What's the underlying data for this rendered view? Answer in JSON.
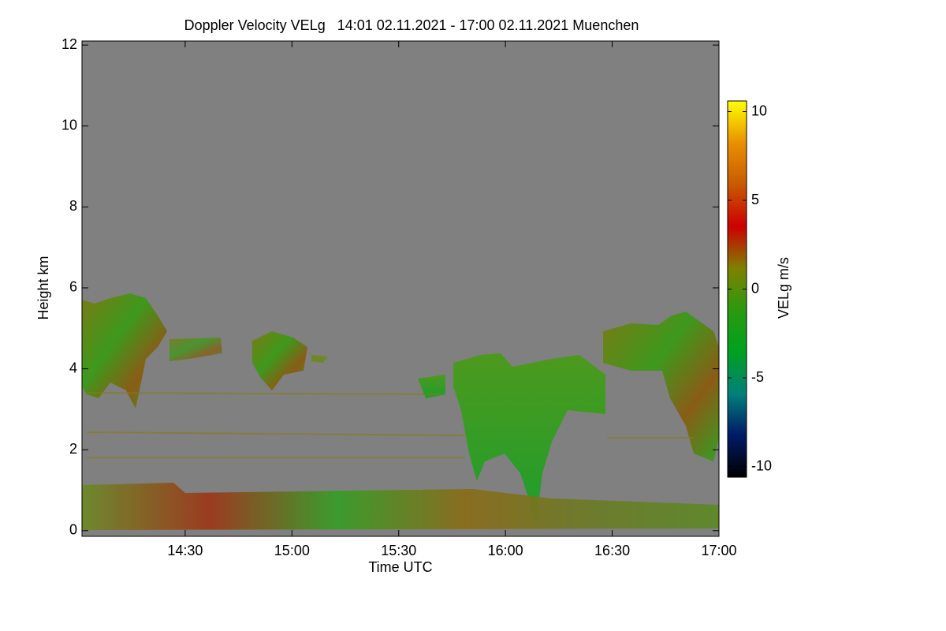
{
  "chart_data": {
    "type": "heatmap",
    "title": "Doppler Velocity VELg   14:01 02.11.2021 - 17:00 02.11.2021 Muenchen",
    "x_label": "Time UTC",
    "y_label": "Height km",
    "colorbar_label": "VELg m/s",
    "xlim": [
      841,
      1020
    ],
    "xticks": [
      {
        "value": 870,
        "label": "14:30"
      },
      {
        "value": 900,
        "label": "15:00"
      },
      {
        "value": 930,
        "label": "15:30"
      },
      {
        "value": 960,
        "label": "16:00"
      },
      {
        "value": 990,
        "label": "16:30"
      },
      {
        "value": 1020,
        "label": "17:00"
      }
    ],
    "ylim": [
      -0.14,
      12.1
    ],
    "yticks": [
      0,
      2,
      4,
      6,
      8,
      10,
      12
    ],
    "clim": [
      -10.6,
      10.6
    ],
    "cticks": [
      -10,
      -5,
      0,
      5,
      10
    ],
    "colorscale": [
      "#000000",
      "#001a66",
      "#00807a",
      "#00a020",
      "#2a9a10",
      "#808000",
      "#cc0000",
      "#c85a00",
      "#e89000",
      "#ffff00"
    ],
    "background": "#808080"
  }
}
